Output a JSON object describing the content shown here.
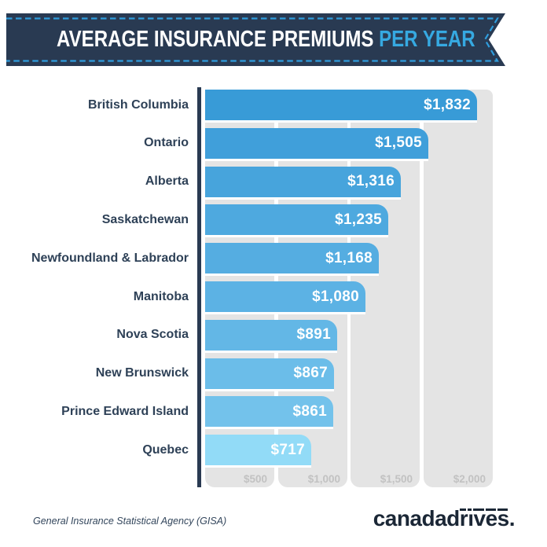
{
  "banner": {
    "title_main": "AVERAGE INSURANCE PREMIUMS",
    "title_accent": "PER YEAR",
    "bg_color": "#293A52",
    "dash_color": "#2F9CDC",
    "accent_color": "#36A9E1"
  },
  "chart_data": {
    "type": "bar",
    "orientation": "horizontal",
    "title": "Average Insurance Premiums Per Year",
    "categories": [
      "British Columbia",
      "Ontario",
      "Alberta",
      "Saskatchewan",
      "Newfoundland & Labrador",
      "Manitoba",
      "Nova Scotia",
      "New Brunswick",
      "Prince Edward Island",
      "Quebec"
    ],
    "values": [
      1832,
      1505,
      1316,
      1235,
      1168,
      1080,
      891,
      867,
      861,
      717
    ],
    "value_labels": [
      "$1,832",
      "$1,505",
      "$1,316",
      "$1,235",
      "$1,168",
      "$1,080",
      "$891",
      "$867",
      "$861",
      "$717"
    ],
    "bar_colors": [
      "#389BD7",
      "#409FDA",
      "#47A4DC",
      "#4EA9DF",
      "#55ADE1",
      "#5CB2E4",
      "#63B7E6",
      "#6BBDE9",
      "#73C2EB",
      "#92DBF7"
    ],
    "x_ticks": [
      "$500",
      "$1,000",
      "$1,500",
      "$2,000"
    ],
    "x_tick_values": [
      500,
      1000,
      1500,
      2000
    ],
    "xlim": [
      0,
      2000
    ],
    "band_color": "#E4E4E4",
    "tick_label_color": "#C2C2C2",
    "axis_color": "#293A52",
    "category_label_color": "#2E4157",
    "legend": "none",
    "grid": "white vertical separators between gray bands"
  },
  "footer": {
    "source": "General Insurance Statistical Agency (GISA)",
    "logo_text_plain": "canadad",
    "logo_text_barred": "rives",
    "logo_period": "."
  }
}
